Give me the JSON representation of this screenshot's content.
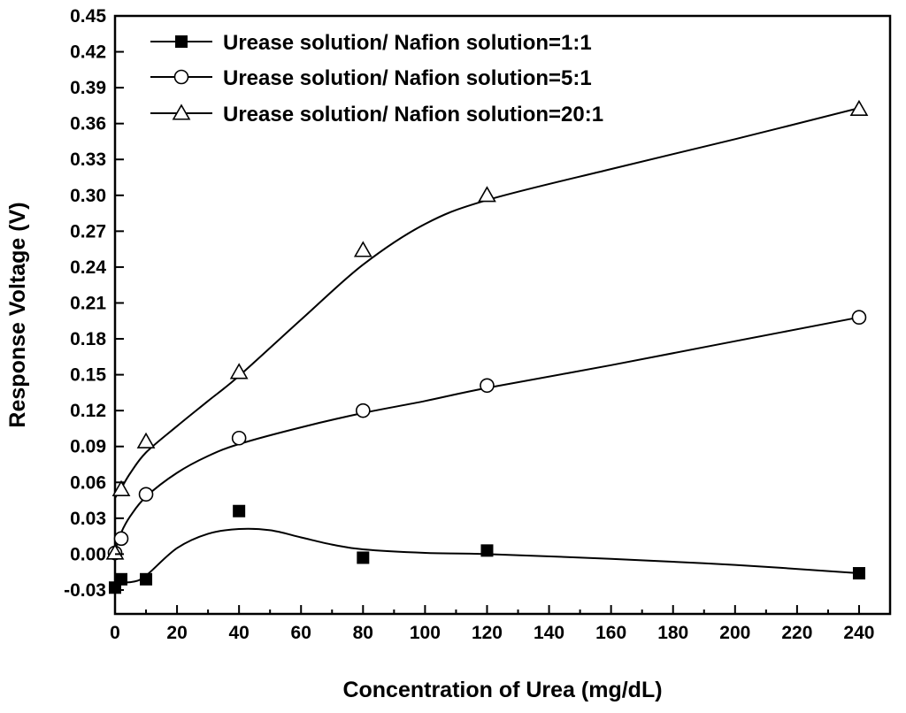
{
  "chart_data": {
    "type": "line",
    "xlabel": "Concentration of Urea (mg/dL)",
    "ylabel": "Response Voltage (V)",
    "xlim": [
      0,
      250
    ],
    "ylim": [
      -0.05,
      0.45
    ],
    "xticks": [
      0,
      20,
      40,
      60,
      80,
      100,
      120,
      140,
      160,
      180,
      200,
      220,
      240
    ],
    "yticks": [
      -0.03,
      0.0,
      0.03,
      0.06,
      0.09,
      0.12,
      0.15,
      0.18,
      0.21,
      0.24,
      0.27,
      0.3,
      0.33,
      0.36,
      0.39,
      0.42,
      0.45
    ],
    "xtick_labels": [
      "0",
      "20",
      "40",
      "60",
      "80",
      "100",
      "120",
      "140",
      "160",
      "180",
      "200",
      "220",
      "240"
    ],
    "ytick_labels": [
      "-0.03",
      "0.00",
      "0.03",
      "0.06",
      "0.09",
      "0.12",
      "0.15",
      "0.18",
      "0.21",
      "0.24",
      "0.27",
      "0.30",
      "0.33",
      "0.36",
      "0.39",
      "0.42",
      "0.45"
    ],
    "legend_position": "top-left",
    "grid": false,
    "series": [
      {
        "name": "Urease solution/ Nafion solution=1:1",
        "marker": "filled-square",
        "x": [
          0,
          2,
          10,
          40,
          80,
          120,
          240
        ],
        "y": [
          -0.028,
          -0.021,
          -0.021,
          0.036,
          -0.003,
          0.003,
          -0.016
        ]
      },
      {
        "name": "Urease solution/ Nafion solution=5:1",
        "marker": "open-circle",
        "x": [
          0,
          2,
          10,
          40,
          80,
          120,
          240
        ],
        "y": [
          0.001,
          0.013,
          0.05,
          0.097,
          0.12,
          0.141,
          0.198
        ]
      },
      {
        "name": "Urease solution/ Nafion solution=20:1",
        "marker": "open-triangle",
        "x": [
          0,
          2,
          10,
          40,
          80,
          120,
          240
        ],
        "y": [
          0.001,
          0.054,
          0.094,
          0.152,
          0.254,
          0.3,
          0.372
        ]
      }
    ],
    "fit_curves": [
      [
        [
          0,
          -0.018
        ],
        [
          2,
          -0.023
        ],
        [
          6,
          -0.023
        ],
        [
          10,
          -0.018
        ],
        [
          20,
          0.005
        ],
        [
          30,
          0.017
        ],
        [
          40,
          0.021
        ],
        [
          50,
          0.02
        ],
        [
          60,
          0.014
        ],
        [
          70,
          0.008
        ],
        [
          80,
          0.004
        ],
        [
          100,
          0.001
        ],
        [
          120,
          0.0
        ],
        [
          160,
          -0.004
        ],
        [
          200,
          -0.009
        ],
        [
          240,
          -0.016
        ]
      ],
      [
        [
          0,
          0.003
        ],
        [
          2,
          0.018
        ],
        [
          5,
          0.032
        ],
        [
          10,
          0.048
        ],
        [
          20,
          0.068
        ],
        [
          30,
          0.082
        ],
        [
          40,
          0.092
        ],
        [
          60,
          0.106
        ],
        [
          80,
          0.118
        ],
        [
          100,
          0.128
        ],
        [
          120,
          0.139
        ],
        [
          160,
          0.158
        ],
        [
          200,
          0.178
        ],
        [
          240,
          0.198
        ]
      ],
      [
        [
          0,
          0.047
        ],
        [
          2,
          0.055
        ],
        [
          5,
          0.068
        ],
        [
          10,
          0.085
        ],
        [
          20,
          0.107
        ],
        [
          30,
          0.128
        ],
        [
          40,
          0.149
        ],
        [
          60,
          0.196
        ],
        [
          80,
          0.242
        ],
        [
          100,
          0.276
        ],
        [
          120,
          0.296
        ],
        [
          160,
          0.322
        ],
        [
          200,
          0.347
        ],
        [
          240,
          0.373
        ]
      ]
    ]
  }
}
